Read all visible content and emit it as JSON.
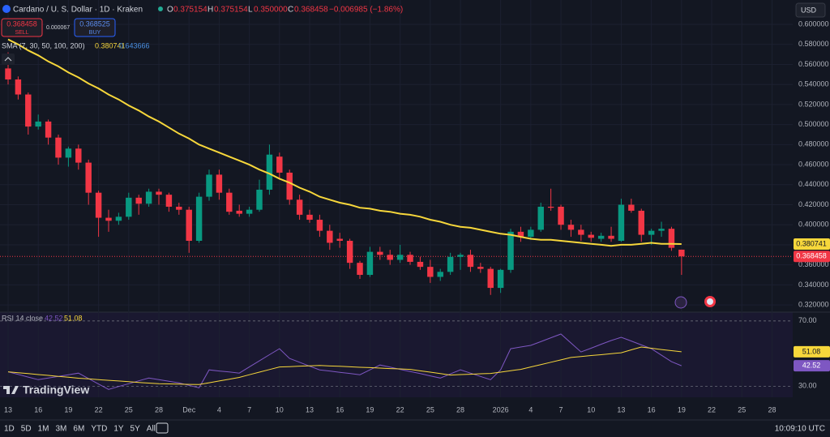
{
  "header": {
    "title": "Cardano / U. S. Dollar · 1D · Kraken",
    "o_label": "O",
    "o": "0.375154",
    "h_label": "H",
    "h": "0.375154",
    "l_label": "L",
    "l": "0.350000",
    "c_label": "C",
    "c": "0.368458",
    "change": "−0.006985 (−1.86%)",
    "sell_price": "0.368458",
    "sell_label": "SELL",
    "spread": "0.000067",
    "buy_price": "0.368525",
    "buy_label": "BUY",
    "currency": "USD",
    "logo": "TradingView"
  },
  "toolbar": {
    "ranges": [
      "1D",
      "5D",
      "1M",
      "3M",
      "6M",
      "YTD",
      "1Y",
      "5Y",
      "All"
    ],
    "clock": "10:09:10 UTC"
  },
  "chart_data": {
    "type": "candlestick",
    "title": "Cardano / U. S. Dollar · 1D · Kraken",
    "up_color": "#089981",
    "down_color": "#f23645",
    "grid": true,
    "grid_color": "#1c2030",
    "open": [
      0.556,
      0.545,
      0.53,
      0.498,
      0.503,
      0.487,
      0.467,
      0.476,
      0.462,
      0.432,
      0.407,
      0.404,
      0.408,
      0.427,
      0.421,
      0.433,
      0.43,
      0.418,
      0.415,
      0.384,
      0.428,
      0.45,
      0.432,
      0.414,
      0.411,
      0.415,
      0.435,
      0.468,
      0.452,
      0.425,
      0.41,
      0.405,
      0.394,
      0.386,
      0.384,
      0.362,
      0.35,
      0.373,
      0.37,
      0.365,
      0.37,
      0.363,
      0.358,
      0.348,
      0.353,
      0.368,
      0.37,
      0.358,
      0.356,
      0.337,
      0.355,
      0.393,
      0.388,
      0.395,
      0.418,
      0.418,
      0.4,
      0.395,
      0.39,
      0.386,
      0.389,
      0.384,
      0.42,
      0.414,
      0.39,
      0.394,
      0.396,
      0.375154
    ],
    "high": [
      0.572,
      0.548,
      0.532,
      0.51,
      0.505,
      0.49,
      0.478,
      0.48,
      0.465,
      0.434,
      0.415,
      0.412,
      0.432,
      0.43,
      0.436,
      0.436,
      0.432,
      0.422,
      0.418,
      0.432,
      0.455,
      0.455,
      0.436,
      0.42,
      0.418,
      0.445,
      0.48,
      0.472,
      0.455,
      0.43,
      0.415,
      0.41,
      0.4,
      0.392,
      0.386,
      0.364,
      0.378,
      0.378,
      0.375,
      0.38,
      0.373,
      0.368,
      0.365,
      0.356,
      0.372,
      0.372,
      0.375,
      0.362,
      0.358,
      0.356,
      0.396,
      0.398,
      0.398,
      0.422,
      0.436,
      0.42,
      0.405,
      0.4,
      0.393,
      0.392,
      0.398,
      0.426,
      0.426,
      0.416,
      0.396,
      0.403,
      0.398,
      0.375154
    ],
    "low": [
      0.54,
      0.525,
      0.49,
      0.495,
      0.48,
      0.46,
      0.458,
      0.455,
      0.42,
      0.388,
      0.393,
      0.4,
      0.405,
      0.41,
      0.418,
      0.42,
      0.413,
      0.41,
      0.372,
      0.382,
      0.424,
      0.425,
      0.41,
      0.408,
      0.408,
      0.413,
      0.43,
      0.445,
      0.42,
      0.405,
      0.402,
      0.388,
      0.375,
      0.377,
      0.356,
      0.346,
      0.348,
      0.365,
      0.36,
      0.362,
      0.36,
      0.355,
      0.342,
      0.344,
      0.35,
      0.355,
      0.353,
      0.352,
      0.33,
      0.332,
      0.352,
      0.383,
      0.385,
      0.393,
      0.414,
      0.395,
      0.388,
      0.384,
      0.383,
      0.383,
      0.383,
      0.383,
      0.412,
      0.383,
      0.38,
      0.388,
      0.374,
      0.35
    ],
    "close": [
      0.545,
      0.53,
      0.498,
      0.503,
      0.487,
      0.467,
      0.476,
      0.462,
      0.432,
      0.407,
      0.404,
      0.408,
      0.427,
      0.421,
      0.433,
      0.43,
      0.418,
      0.415,
      0.384,
      0.428,
      0.45,
      0.432,
      0.413,
      0.411,
      0.415,
      0.435,
      0.47,
      0.452,
      0.425,
      0.41,
      0.405,
      0.394,
      0.382,
      0.384,
      0.362,
      0.35,
      0.373,
      0.37,
      0.365,
      0.37,
      0.363,
      0.358,
      0.348,
      0.353,
      0.368,
      0.37,
      0.358,
      0.356,
      0.337,
      0.355,
      0.393,
      0.388,
      0.395,
      0.418,
      0.417,
      0.4,
      0.395,
      0.39,
      0.387,
      0.389,
      0.386,
      0.42,
      0.414,
      0.39,
      0.394,
      0.396,
      0.377,
      0.368458
    ],
    "xlim": [
      -0.806,
      78.06
    ],
    "xticks": [
      {
        "value": 0,
        "label": "13"
      },
      {
        "value": 3,
        "label": "16"
      },
      {
        "value": 6,
        "label": "19"
      },
      {
        "value": 9,
        "label": "22"
      },
      {
        "value": 12,
        "label": "25"
      },
      {
        "value": 15,
        "label": "28"
      },
      {
        "value": 18,
        "label": "Dec"
      },
      {
        "value": 21,
        "label": "4"
      },
      {
        "value": 24,
        "label": "7"
      },
      {
        "value": 27,
        "label": "10"
      },
      {
        "value": 30,
        "label": "13"
      },
      {
        "value": 33,
        "label": "16"
      },
      {
        "value": 36,
        "label": "19"
      },
      {
        "value": 39,
        "label": "22"
      },
      {
        "value": 42,
        "label": "25"
      },
      {
        "value": 45,
        "label": "28"
      },
      {
        "value": 49,
        "label": "2026"
      },
      {
        "value": 52,
        "label": "4"
      },
      {
        "value": 55,
        "label": "7"
      },
      {
        "value": 58,
        "label": "10"
      },
      {
        "value": 61,
        "label": "13"
      },
      {
        "value": 64,
        "label": "16"
      },
      {
        "value": 67,
        "label": "19"
      },
      {
        "value": 70,
        "label": "22"
      },
      {
        "value": 73,
        "label": "25"
      },
      {
        "value": 76,
        "label": "28"
      }
    ],
    "ylim": [
      0.3128,
      0.6243
    ],
    "yticks": [
      {
        "value": 0.6,
        "label": "0.600000"
      },
      {
        "value": 0.58,
        "label": "0.580000"
      },
      {
        "value": 0.56,
        "label": "0.560000"
      },
      {
        "value": 0.54,
        "label": "0.540000"
      },
      {
        "value": 0.52,
        "label": "0.520000"
      },
      {
        "value": 0.5,
        "label": "0.500000"
      },
      {
        "value": 0.48,
        "label": "0.480000"
      },
      {
        "value": 0.46,
        "label": "0.460000"
      },
      {
        "value": 0.44,
        "label": "0.440000"
      },
      {
        "value": 0.42,
        "label": "0.420000"
      },
      {
        "value": 0.4,
        "label": "0.400000"
      },
      {
        "value": 0.38,
        "label": "0.380000"
      },
      {
        "value": 0.36,
        "label": "0.360000"
      },
      {
        "value": 0.34,
        "label": "0.340000"
      },
      {
        "value": 0.32,
        "label": "0.320000"
      }
    ],
    "sma": {
      "name": "SMA (7, 30, 50, 100, 200)",
      "color": "#f7d73b",
      "extra_value": 0.643666,
      "extra_color": "#4a90e2",
      "values": [
        0.585,
        0.58,
        0.574,
        0.569,
        0.563,
        0.558,
        0.552,
        0.547,
        0.541,
        0.536,
        0.53,
        0.525,
        0.519,
        0.514,
        0.508,
        0.503,
        0.497,
        0.491,
        0.486,
        0.48,
        0.476,
        0.472,
        0.468,
        0.464,
        0.46,
        0.455,
        0.451,
        0.446,
        0.442,
        0.437,
        0.433,
        0.428,
        0.425,
        0.422,
        0.42,
        0.417,
        0.416,
        0.414,
        0.413,
        0.411,
        0.41,
        0.408,
        0.405,
        0.403,
        0.4,
        0.398,
        0.397,
        0.395,
        0.393,
        0.391,
        0.39,
        0.388,
        0.386,
        0.385,
        0.385,
        0.384,
        0.383,
        0.382,
        0.381,
        0.38,
        0.379,
        0.38,
        0.38,
        0.381,
        0.382,
        0.381,
        0.381,
        0.380741
      ]
    },
    "rsi": {
      "name": "RSI 14 close",
      "ylim": [
        23.2,
        75.4
      ],
      "yticks": [
        {
          "value": 70,
          "label": "70.00"
        },
        {
          "value": 30,
          "label": "30.00"
        }
      ],
      "series": [
        {
          "name": "RSI",
          "color": "#7e57c2",
          "values": [
            38.8,
            37.2,
            35.6,
            34,
            35,
            36,
            37,
            38,
            34.7,
            31.3,
            28,
            29.8,
            31.5,
            33.3,
            35,
            34,
            33,
            32,
            30.5,
            29,
            40,
            39.3,
            38.7,
            38,
            41.8,
            45.5,
            49.3,
            53,
            47,
            44.7,
            42.3,
            40,
            39.3,
            38.5,
            37.8,
            37,
            40,
            43,
            41.7,
            40.3,
            39,
            37.7,
            36.3,
            35,
            37.5,
            40,
            38,
            36,
            34,
            40,
            53,
            54,
            55,
            57.3,
            59.7,
            62,
            56.5,
            51,
            53.3,
            55.7,
            58,
            60,
            57.7,
            55.3,
            53,
            49,
            45,
            42.52
          ]
        },
        {
          "name": "RSI MA",
          "color": "#f7d73b",
          "values": [
            38.8,
            38.2,
            37.7,
            37.1,
            36.6,
            36.0,
            35.5,
            34.9,
            34.5,
            34.0,
            33.6,
            33.2,
            32.8,
            32.3,
            31.9,
            31.5,
            31.4,
            31.3,
            31.1,
            31.0,
            32.1,
            33.2,
            34.3,
            35.4,
            37.0,
            38.6,
            40.2,
            41.8,
            42.0,
            42.3,
            42.5,
            42.7,
            42.4,
            42.2,
            41.9,
            41.6,
            41.4,
            41.1,
            40.8,
            40.6,
            40.3,
            39.4,
            38.6,
            37.7,
            36.8,
            37.1,
            37.3,
            37.6,
            37.8,
            38.6,
            39.5,
            40.3,
            41.8,
            43.2,
            44.7,
            46.1,
            47.6,
            48.2,
            48.8,
            49.3,
            49.9,
            50.5,
            52.3,
            54.0,
            53.3,
            52.5,
            51.8,
            51.08
          ]
        }
      ]
    }
  }
}
